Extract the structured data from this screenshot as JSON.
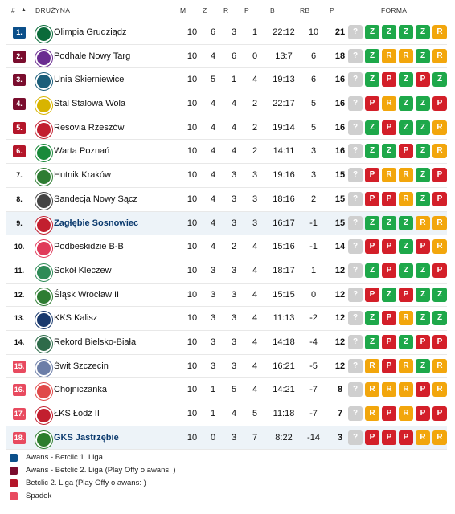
{
  "header": {
    "rank": "#",
    "team": "DRUŻYNA",
    "m": "M",
    "z": "Z",
    "r": "R",
    "p": "P",
    "b": "B",
    "rb": "RB",
    "pts": "P",
    "form": "FORMA",
    "sort_icon": "triangle-up-icon"
  },
  "colors": {
    "promotion": "#0b4f8a",
    "promo_playoff": "#7a0d2e",
    "cup_playoff": "#b4162a",
    "relegation": "#e84a5f",
    "win": "#1ea84a",
    "draw": "#f2a60c",
    "loss": "#d31f29",
    "unknown": "#cfcfcf"
  },
  "rows": [
    {
      "rank": "1.",
      "team": "Olimpia Grudziądz",
      "m": "10",
      "z": "6",
      "r": "3",
      "p": "1",
      "b": "22:12",
      "rb": "10",
      "pts": "21",
      "form": [
        "?",
        "Z",
        "Z",
        "Z",
        "Z",
        "R"
      ]
    },
    {
      "rank": "2.",
      "team": "Podhale Nowy Targ",
      "m": "10",
      "z": "4",
      "r": "6",
      "p": "0",
      "b": "13:7",
      "rb": "6",
      "pts": "18",
      "form": [
        "?",
        "Z",
        "R",
        "R",
        "Z",
        "R"
      ]
    },
    {
      "rank": "3.",
      "team": "Unia Skierniewice",
      "m": "10",
      "z": "5",
      "r": "1",
      "p": "4",
      "b": "19:13",
      "rb": "6",
      "pts": "16",
      "form": [
        "?",
        "Z",
        "P",
        "Z",
        "P",
        "Z"
      ]
    },
    {
      "rank": "4.",
      "team": "Stal Stalowa Wola",
      "m": "10",
      "z": "4",
      "r": "4",
      "p": "2",
      "b": "22:17",
      "rb": "5",
      "pts": "16",
      "form": [
        "?",
        "P",
        "R",
        "Z",
        "Z",
        "P"
      ]
    },
    {
      "rank": "5.",
      "team": "Resovia Rzeszów",
      "m": "10",
      "z": "4",
      "r": "4",
      "p": "2",
      "b": "19:14",
      "rb": "5",
      "pts": "16",
      "form": [
        "?",
        "Z",
        "P",
        "Z",
        "Z",
        "R"
      ]
    },
    {
      "rank": "6.",
      "team": "Warta Poznań",
      "m": "10",
      "z": "4",
      "r": "4",
      "p": "2",
      "b": "14:11",
      "rb": "3",
      "pts": "16",
      "form": [
        "?",
        "Z",
        "Z",
        "P",
        "Z",
        "R"
      ]
    },
    {
      "rank": "7.",
      "team": "Hutnik Kraków",
      "m": "10",
      "z": "4",
      "r": "3",
      "p": "3",
      "b": "19:16",
      "rb": "3",
      "pts": "15",
      "form": [
        "?",
        "P",
        "R",
        "R",
        "Z",
        "P"
      ]
    },
    {
      "rank": "8.",
      "team": "Sandecja Nowy Sącz",
      "m": "10",
      "z": "4",
      "r": "3",
      "p": "3",
      "b": "18:16",
      "rb": "2",
      "pts": "15",
      "form": [
        "?",
        "P",
        "P",
        "R",
        "Z",
        "P"
      ]
    },
    {
      "rank": "9.",
      "team": "Zagłębie Sosnowiec",
      "m": "10",
      "z": "4",
      "r": "3",
      "p": "3",
      "b": "16:17",
      "rb": "-1",
      "pts": "15",
      "form": [
        "?",
        "Z",
        "Z",
        "Z",
        "R",
        "R"
      ]
    },
    {
      "rank": "10.",
      "team": "Podbeskidzie B-B",
      "m": "10",
      "z": "4",
      "r": "2",
      "p": "4",
      "b": "15:16",
      "rb": "-1",
      "pts": "14",
      "form": [
        "?",
        "P",
        "P",
        "Z",
        "P",
        "R"
      ]
    },
    {
      "rank": "11.",
      "team": "Sokół Kleczew",
      "m": "10",
      "z": "3",
      "r": "3",
      "p": "4",
      "b": "18:17",
      "rb": "1",
      "pts": "12",
      "form": [
        "?",
        "Z",
        "P",
        "Z",
        "Z",
        "P"
      ]
    },
    {
      "rank": "12.",
      "team": "Śląsk Wrocław II",
      "m": "10",
      "z": "3",
      "r": "3",
      "p": "4",
      "b": "15:15",
      "rb": "0",
      "pts": "12",
      "form": [
        "?",
        "P",
        "Z",
        "P",
        "Z",
        "Z"
      ]
    },
    {
      "rank": "13.",
      "team": "KKS Kalisz",
      "m": "10",
      "z": "3",
      "r": "3",
      "p": "4",
      "b": "11:13",
      "rb": "-2",
      "pts": "12",
      "form": [
        "?",
        "Z",
        "P",
        "R",
        "Z",
        "Z"
      ]
    },
    {
      "rank": "14.",
      "team": "Rekord Bielsko-Biała",
      "m": "10",
      "z": "3",
      "r": "3",
      "p": "4",
      "b": "14:18",
      "rb": "-4",
      "pts": "12",
      "form": [
        "?",
        "Z",
        "P",
        "Z",
        "P",
        "P"
      ]
    },
    {
      "rank": "15.",
      "team": "Świt Szczecin",
      "m": "10",
      "z": "3",
      "r": "3",
      "p": "4",
      "b": "16:21",
      "rb": "-5",
      "pts": "12",
      "form": [
        "?",
        "R",
        "P",
        "R",
        "Z",
        "R"
      ]
    },
    {
      "rank": "16.",
      "team": "Chojniczanka",
      "m": "10",
      "z": "1",
      "r": "5",
      "p": "4",
      "b": "14:21",
      "rb": "-7",
      "pts": "8",
      "form": [
        "?",
        "R",
        "R",
        "R",
        "P",
        "R"
      ]
    },
    {
      "rank": "17.",
      "team": "ŁKS Łódź II",
      "m": "10",
      "z": "1",
      "r": "4",
      "p": "5",
      "b": "11:18",
      "rb": "-7",
      "pts": "7",
      "form": [
        "?",
        "R",
        "P",
        "R",
        "P",
        "P"
      ]
    },
    {
      "rank": "18.",
      "team": "GKS Jastrzębie",
      "m": "10",
      "z": "0",
      "r": "3",
      "p": "7",
      "b": "8:22",
      "rb": "-14",
      "pts": "3",
      "form": [
        "?",
        "P",
        "P",
        "P",
        "R",
        "R"
      ]
    }
  ],
  "legend": [
    {
      "label": "Awans - Betclic 1. Liga"
    },
    {
      "label": "Awans - Betclic 2. Liga (Play Offy o awans: )"
    },
    {
      "label": "Betclic 2. Liga (Play Offy o awans: )"
    },
    {
      "label": "Spadek"
    }
  ]
}
